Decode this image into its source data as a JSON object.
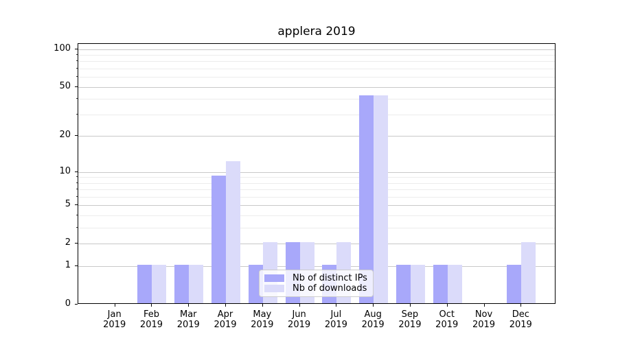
{
  "title": "applera 2019",
  "chart_data": {
    "type": "bar",
    "title": "applera 2019",
    "categories": [
      "Jan 2019",
      "Feb 2019",
      "Mar 2019",
      "Apr 2019",
      "May 2019",
      "Jun 2019",
      "Jul 2019",
      "Aug 2019",
      "Sep 2019",
      "Oct 2019",
      "Nov 2019",
      "Dec 2019"
    ],
    "series": [
      {
        "name": "Nb of distinct IPs",
        "color": "#a8a8fa",
        "values": [
          0,
          1,
          1,
          9,
          1,
          2,
          1,
          42,
          1,
          1,
          0,
          1
        ]
      },
      {
        "name": "Nb of downloads",
        "color": "#dbdbfa",
        "values": [
          0,
          1,
          1,
          12,
          2,
          2,
          2,
          42,
          1,
          1,
          0,
          2
        ]
      }
    ],
    "yscale": "log1p",
    "ylim": [
      0,
      110
    ],
    "yticks": [
      0,
      1,
      2,
      5,
      10,
      20,
      50,
      100
    ],
    "minor_gridlines": [
      3,
      4,
      6,
      7,
      8,
      9,
      30,
      40,
      60,
      70,
      80,
      90
    ],
    "grid": "horizontal",
    "legend_position": "lower center",
    "xlabel": "",
    "ylabel": ""
  },
  "colors": {
    "major_grid": "#c8c8c8",
    "minor_grid": "#ececec",
    "spine": "#000000",
    "legend_border": "#cccccc",
    "series1": "#a8a8fa",
    "series2": "#dbdbfa"
  }
}
